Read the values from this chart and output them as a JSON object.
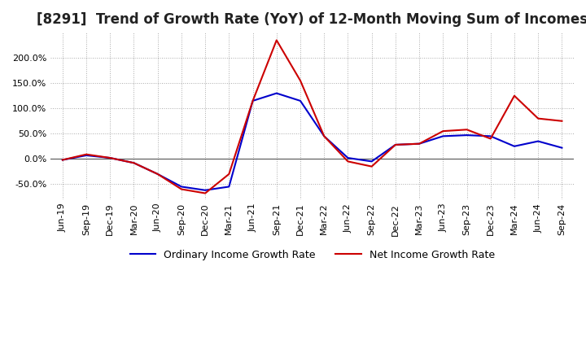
{
  "title": "[8291]  Trend of Growth Rate (YoY) of 12-Month Moving Sum of Incomes",
  "title_fontsize": 12,
  "ylim": [
    -80,
    250
  ],
  "yticks": [
    -50,
    0,
    50,
    100,
    150,
    200
  ],
  "background_color": "#ffffff",
  "grid_color": "#aaaaaa",
  "ordinary_color": "#0000cc",
  "net_color": "#cc0000",
  "legend_ordinary": "Ordinary Income Growth Rate",
  "legend_net": "Net Income Growth Rate",
  "x_labels": [
    "Jun-19",
    "Sep-19",
    "Dec-19",
    "Mar-20",
    "Jun-20",
    "Sep-20",
    "Dec-20",
    "Mar-21",
    "Jun-21",
    "Sep-21",
    "Dec-21",
    "Mar-22",
    "Jun-22",
    "Sep-22",
    "Dec-22",
    "Mar-23",
    "Jun-23",
    "Sep-23",
    "Dec-23",
    "Mar-24",
    "Jun-24",
    "Sep-24"
  ],
  "ordinary_income_growth": [
    -2,
    7,
    2,
    -8,
    -30,
    -55,
    -62,
    -55,
    115,
    130,
    115,
    45,
    2,
    -5,
    28,
    30,
    45,
    47,
    45,
    25,
    35,
    22
  ],
  "net_income_growth": [
    -2,
    9,
    2,
    -8,
    -30,
    -60,
    -68,
    -30,
    115,
    235,
    155,
    45,
    -5,
    -15,
    28,
    30,
    55,
    58,
    40,
    125,
    80,
    75
  ]
}
